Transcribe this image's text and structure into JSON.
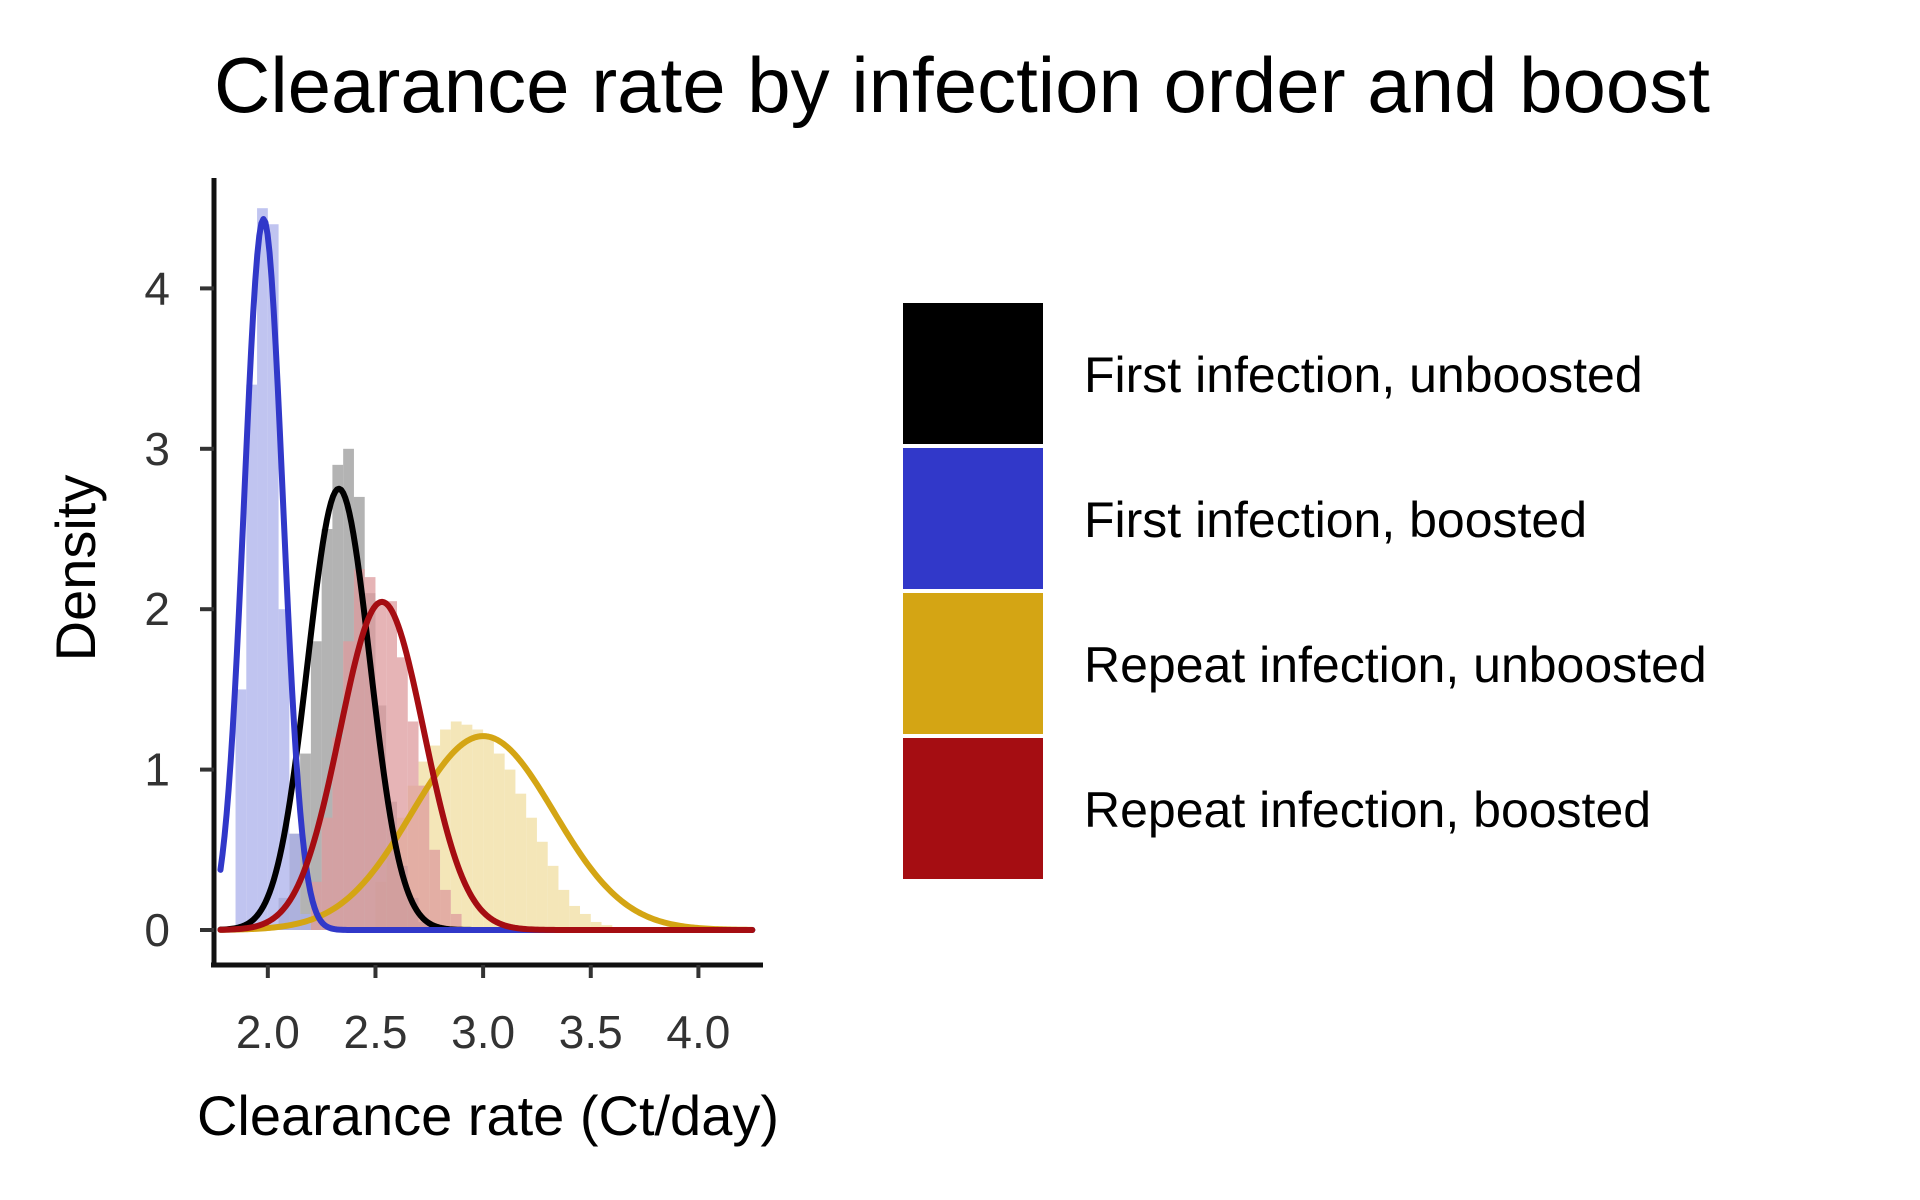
{
  "chart_data": {
    "type": "area",
    "title": "Clearance rate by infection order and boost",
    "xlabel": "Clearance rate (Ct/day)",
    "ylabel": "Density",
    "xlim": [
      1.75,
      4.3
    ],
    "ylim": [
      0,
      4.7
    ],
    "x_ticks": [
      "2.0",
      "2.5",
      "3.0",
      "3.5",
      "4.0"
    ],
    "x_tick_values": [
      2.0,
      2.5,
      3.0,
      3.5,
      4.0
    ],
    "y_ticks": [
      "0",
      "1",
      "2",
      "3",
      "4"
    ],
    "y_tick_values": [
      0,
      1,
      2,
      3,
      4
    ],
    "grid": false,
    "legend_position": "right",
    "series": [
      {
        "name": "First infection, unboosted",
        "color": "#000000",
        "fill": "#999999",
        "curve": {
          "mean": 2.33,
          "sd": 0.145
        },
        "histogram": {
          "start": 2.05,
          "bin_width": 0.05,
          "heights": [
            0.2,
            0.6,
            1.1,
            1.8,
            2.5,
            2.9,
            3.0,
            2.7,
            2.1,
            1.4,
            0.8,
            0.4,
            0.2,
            0.05
          ]
        }
      },
      {
        "name": "First infection, boosted",
        "color": "#3138C9",
        "fill": "#ABB0EB",
        "curve": {
          "mean": 1.98,
          "sd": 0.09
        },
        "histogram": {
          "start": 1.85,
          "bin_width": 0.05,
          "heights": [
            1.5,
            3.4,
            4.5,
            4.4,
            2.0,
            0.6,
            0.1
          ]
        }
      },
      {
        "name": "Repeat infection, unboosted",
        "color": "#D4A514",
        "fill": "#F0DDA0",
        "curve": {
          "mean": 3.0,
          "sd": 0.33
        },
        "histogram": {
          "start": 2.5,
          "bin_width": 0.05,
          "heights": [
            0.3,
            0.5,
            0.7,
            0.9,
            1.05,
            1.15,
            1.25,
            1.3,
            1.28,
            1.25,
            1.2,
            1.1,
            1.0,
            0.85,
            0.7,
            0.55,
            0.4,
            0.25,
            0.15,
            0.1,
            0.05,
            0.03
          ]
        }
      },
      {
        "name": "Repeat infection, boosted",
        "color": "#A50D12",
        "fill": "#DE9B9E",
        "curve": {
          "mean": 2.53,
          "sd": 0.195
        },
        "histogram": {
          "start": 2.2,
          "bin_width": 0.05,
          "heights": [
            0.3,
            0.7,
            1.2,
            1.8,
            2.25,
            2.2,
            2.05,
            2.05,
            1.7,
            1.3,
            0.9,
            0.5,
            0.25,
            0.1
          ]
        }
      }
    ]
  }
}
